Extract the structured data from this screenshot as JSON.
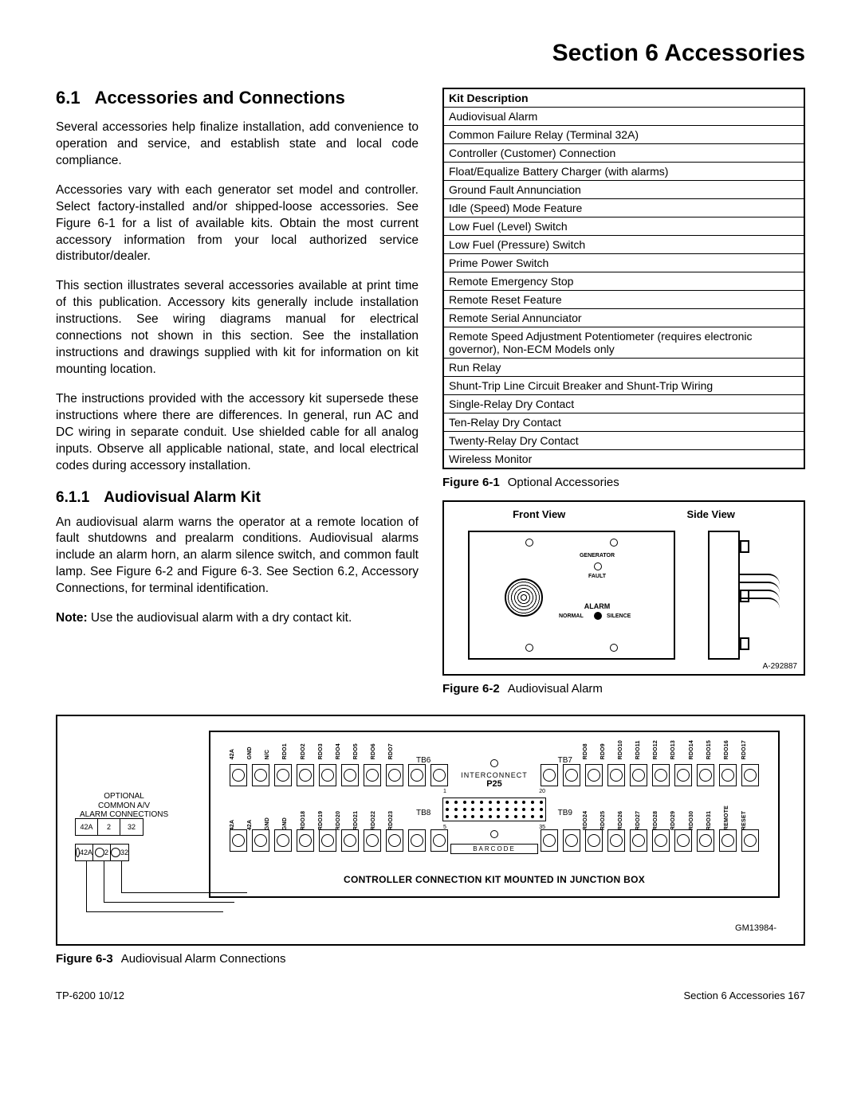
{
  "section_title": "Section 6  Accessories",
  "h1_num": "6.1",
  "h1_text": "Accessories and Connections",
  "para1": "Several accessories help finalize installation, add convenience to operation and service, and establish state and local code compliance.",
  "para2": "Accessories vary with each generator set model and controller. Select factory-installed and/or shipped-loose accessories. See Figure 6-1 for a list of available kits. Obtain the most current accessory information from your local authorized service distributor/dealer.",
  "para3": "This section illustrates several accessories available at print time of this publication. Accessory kits generally include installation instructions. See wiring diagrams manual for electrical connections not shown in this section. See the installation instructions and drawings supplied with kit for information on kit mounting location.",
  "para4": "The instructions provided with the accessory kit supersede these instructions where there are differences. In general, run AC and DC wiring in separate conduit. Use shielded cable for all analog inputs. Observe all applicable national, state, and local electrical codes during accessory installation.",
  "h2_num": "6.1.1",
  "h2_text": "Audiovisual Alarm Kit",
  "para5": "An audiovisual alarm warns the operator at a remote location of fault shutdowns and prealarm conditions. Audiovisual alarms include an alarm horn, an alarm silence switch, and common fault lamp. See Figure 6-2 and Figure 6-3. See Section 6.2, Accessory Connections, for terminal identification.",
  "note_label": "Note:",
  "note_text": " Use the audiovisual alarm with a dry contact kit.",
  "kit_header": "Kit Description",
  "kit_rows": [
    "Audiovisual Alarm",
    "Common Failure Relay (Terminal 32A)",
    "Controller (Customer) Connection",
    "Float/Equalize Battery Charger (with alarms)",
    "Ground Fault Annunciation",
    "Idle (Speed) Mode Feature",
    "Low Fuel (Level) Switch",
    "Low Fuel (Pressure) Switch",
    "Prime Power Switch",
    "Remote Emergency Stop",
    "Remote Reset Feature",
    "Remote Serial Annunciator",
    "Remote Speed Adjustment Potentiometer (requires electronic governor), Non-ECM Models only",
    "Run Relay",
    "Shunt-Trip Line Circuit Breaker and Shunt-Trip Wiring",
    "Single-Relay Dry Contact",
    "Ten-Relay Dry Contact",
    "Twenty-Relay Dry Contact",
    "Wireless Monitor"
  ],
  "fig1_num": "Figure 6-1",
  "fig1_cap": "Optional Accessories",
  "fig2_front": "Front View",
  "fig2_side": "Side View",
  "fig2_gen": "GENERATOR",
  "fig2_fault": "FAULT",
  "fig2_alarm": "ALARM",
  "fig2_normal": "NORMAL",
  "fig2_silence": "SILENCE",
  "fig2_part": "A-292887",
  "fig2_num": "Figure 6-2",
  "fig2_cap": "Audiovisual Alarm",
  "fig3": {
    "top_labels_left": [
      "42A",
      "GND",
      "N/C",
      "RDO1",
      "RDO2",
      "RDO3",
      "RDO4",
      "RDO5",
      "RDO6",
      "RDO7"
    ],
    "top_labels_right": [
      "RDO8",
      "RDO9",
      "RDO10",
      "RDO11",
      "RDO12",
      "RDO13",
      "RDO14",
      "RDO15",
      "RDO16",
      "RDO17"
    ],
    "bot_labels_left": [
      "42A",
      "42A",
      "GND",
      "GND",
      "RDO18",
      "RDO19",
      "RDO20",
      "RDO21",
      "RDO22",
      "RDO23"
    ],
    "bot_labels_right": [
      "RDO24",
      "RDO25",
      "RDO26",
      "RDO27",
      "RDO28",
      "RDO29",
      "RDO30",
      "RDO31",
      "REMOTE",
      "RESET"
    ],
    "tb6": "TB6",
    "tb7": "TB7",
    "tb8": "TB8",
    "tb9": "TB9",
    "interconnect": "INTERCONNECT",
    "p25": "P25",
    "pin1": "1",
    "pin20": "20",
    "pin5": "5",
    "pin35": "35",
    "barcode": "BARCODE",
    "jbox_caption": "CONTROLLER CONNECTION KIT MOUNTED IN JUNCTION BOX",
    "av_label1": "OPTIONAL",
    "av_label2": "COMMON A/V",
    "av_label3": "ALARM CONNECTIONS",
    "s1": [
      "42A",
      "2",
      "32"
    ],
    "s2": [
      "42A",
      "2",
      "32"
    ],
    "gm": "GM13984-"
  },
  "fig3_num": "Figure 6-3",
  "fig3_cap": "Audiovisual Alarm Connections",
  "footer_left": "TP-6200  10/12",
  "footer_right": "Section 6  Accessories  167"
}
